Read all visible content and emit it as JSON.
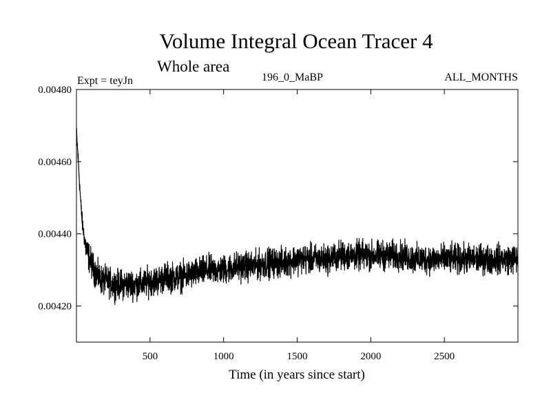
{
  "chart_data": {
    "type": "line",
    "title": "Volume Integral Ocean Tracer 4",
    "subtitle": "Whole area",
    "experiment_label": "Expt = teyJn",
    "run_label": "196_0_MaBP",
    "period_label": "ALL_MONTHS",
    "xlabel": "Time (in years since start)",
    "ylabel": "",
    "xlim": [
      0,
      3000
    ],
    "ylim": [
      0.0041,
      0.0048
    ],
    "x_ticks": [
      500,
      1000,
      1500,
      2000,
      2500
    ],
    "x_tick_labels": [
      "500",
      "1000",
      "1500",
      "2000",
      "2500"
    ],
    "y_ticks": [
      0.0042,
      0.0044,
      0.0046,
      0.0048
    ],
    "y_tick_labels": [
      "0.00420",
      "0.00440",
      "0.00460",
      "0.00480"
    ],
    "grid": false,
    "series": [
      {
        "name": "Volume Integral Ocean Tracer 4",
        "color": "#000000",
        "x": [
          0,
          10,
          20,
          30,
          40,
          50,
          60,
          80,
          100,
          120,
          150,
          180,
          200,
          250,
          300,
          350,
          400,
          450,
          500,
          550,
          600,
          700,
          800,
          900,
          1000,
          1100,
          1200,
          1300,
          1400,
          1500,
          1600,
          1700,
          1800,
          1900,
          2000,
          2100,
          2200,
          2300,
          2400,
          2500,
          2600,
          2700,
          2800,
          2900,
          3000
        ],
        "values": [
          0.00468,
          0.00462,
          0.00455,
          0.00448,
          0.00443,
          0.0044,
          0.00437,
          0.00434,
          0.00432,
          0.0043,
          0.00428,
          0.00427,
          0.00427,
          0.00426,
          0.00426,
          0.00426,
          0.00426,
          0.00426,
          0.00427,
          0.00427,
          0.00428,
          0.00428,
          0.00429,
          0.0043,
          0.0043,
          0.00431,
          0.00431,
          0.00432,
          0.00432,
          0.00433,
          0.00433,
          0.00433,
          0.00434,
          0.00434,
          0.00434,
          0.00434,
          0.00434,
          0.00433,
          0.00433,
          0.00433,
          0.00433,
          0.00433,
          0.00433,
          0.00433,
          0.00433
        ],
        "noise_amplitude": 6e-05
      }
    ]
  }
}
